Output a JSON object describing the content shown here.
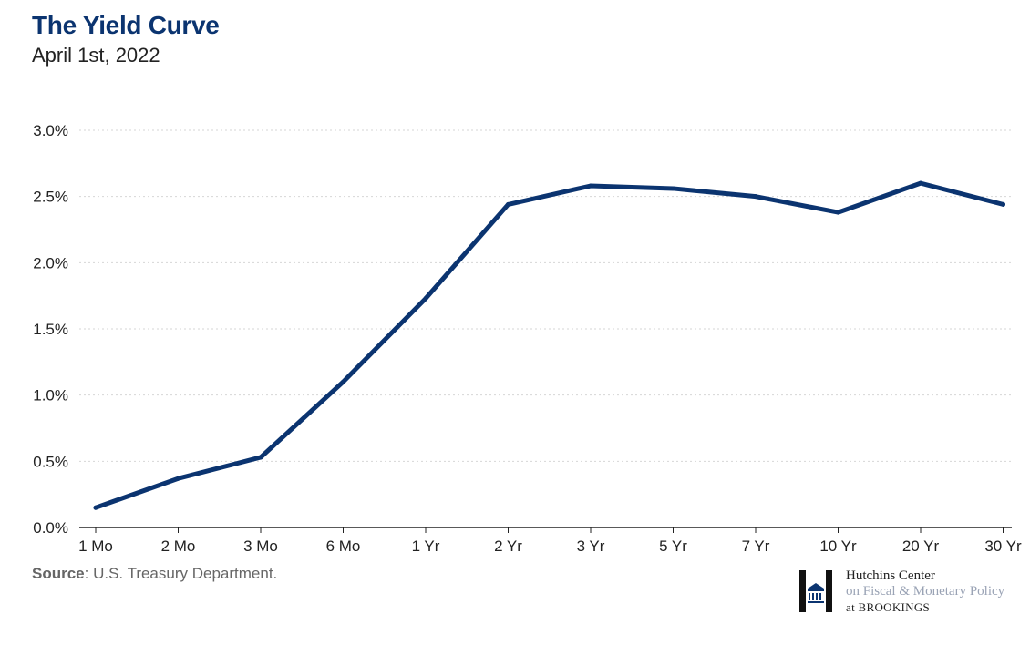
{
  "header": {
    "title": "The Yield Curve",
    "subtitle": "April 1st, 2022"
  },
  "footer": {
    "source_label": "Source",
    "source_text": ": U.S. Treasury Department."
  },
  "logo": {
    "line1": "Hutchins Center",
    "line2": "on Fiscal & Monetary Policy",
    "line3_prefix": "at ",
    "line3_brand": "BROOKINGS"
  },
  "colors": {
    "line": "#0b3470",
    "title": "#0b3470",
    "grid": "#d6d6d6",
    "axis": "#222222"
  },
  "chart_data": {
    "type": "line",
    "title": "The Yield Curve",
    "subtitle": "April 1st, 2022",
    "xlabel": "",
    "ylabel": "",
    "categories": [
      "1 Mo",
      "2 Mo",
      "3 Mo",
      "6 Mo",
      "1 Yr",
      "2 Yr",
      "3 Yr",
      "5 Yr",
      "7 Yr",
      "10 Yr",
      "20 Yr",
      "30 Yr"
    ],
    "series": [
      {
        "values": [
          0.15,
          0.37,
          0.53,
          1.1,
          1.73,
          2.44,
          2.58,
          2.56,
          2.5,
          2.38,
          2.6,
          2.44
        ]
      }
    ],
    "ylim": [
      0,
      3.0
    ],
    "yticks": [
      0,
      0.5,
      1.0,
      1.5,
      2.0,
      2.5,
      3.0
    ],
    "ytick_labels": [
      "0.0%",
      "0.5%",
      "1.0%",
      "1.5%",
      "2.0%",
      "2.5%",
      "3.0%"
    ],
    "grid": true,
    "legend": "none"
  }
}
